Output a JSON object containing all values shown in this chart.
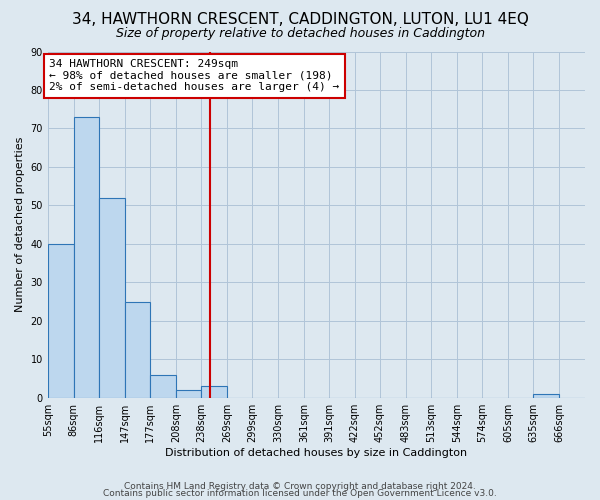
{
  "title": "34, HAWTHORN CRESCENT, CADDINGTON, LUTON, LU1 4EQ",
  "subtitle": "Size of property relative to detached houses in Caddington",
  "xlabel": "Distribution of detached houses by size in Caddington",
  "ylabel": "Number of detached properties",
  "bin_edges": [
    55,
    86,
    116,
    147,
    177,
    208,
    238,
    269,
    299,
    330,
    361,
    391,
    422,
    452,
    483,
    513,
    544,
    574,
    605,
    635,
    666,
    697
  ],
  "bar_heights": [
    40,
    73,
    52,
    25,
    6,
    2,
    3,
    0,
    0,
    0,
    0,
    0,
    0,
    0,
    0,
    0,
    0,
    0,
    0,
    1,
    0
  ],
  "bar_color": "#bdd7ee",
  "bar_edgecolor": "#2e75b6",
  "ylim": [
    0,
    90
  ],
  "yticks": [
    0,
    10,
    20,
    30,
    40,
    50,
    60,
    70,
    80,
    90
  ],
  "xtick_labels": [
    "55sqm",
    "86sqm",
    "116sqm",
    "147sqm",
    "177sqm",
    "208sqm",
    "238sqm",
    "269sqm",
    "299sqm",
    "330sqm",
    "361sqm",
    "391sqm",
    "422sqm",
    "452sqm",
    "483sqm",
    "513sqm",
    "544sqm",
    "574sqm",
    "605sqm",
    "635sqm",
    "666sqm"
  ],
  "property_line_x": 249,
  "property_line_color": "#cc0000",
  "annotation_box_text": "34 HAWTHORN CRESCENT: 249sqm\n← 98% of detached houses are smaller (198)\n2% of semi-detached houses are larger (4) →",
  "annotation_box_color": "#cc0000",
  "annotation_box_bg": "#ffffff",
  "footer_line1": "Contains HM Land Registry data © Crown copyright and database right 2024.",
  "footer_line2": "Contains public sector information licensed under the Open Government Licence v3.0.",
  "background_color": "#dde8f0",
  "grid_color": "#b0c4d8",
  "title_fontsize": 11,
  "subtitle_fontsize": 9,
  "axis_label_fontsize": 8,
  "tick_fontsize": 7,
  "annotation_fontsize": 8,
  "footer_fontsize": 6.5
}
